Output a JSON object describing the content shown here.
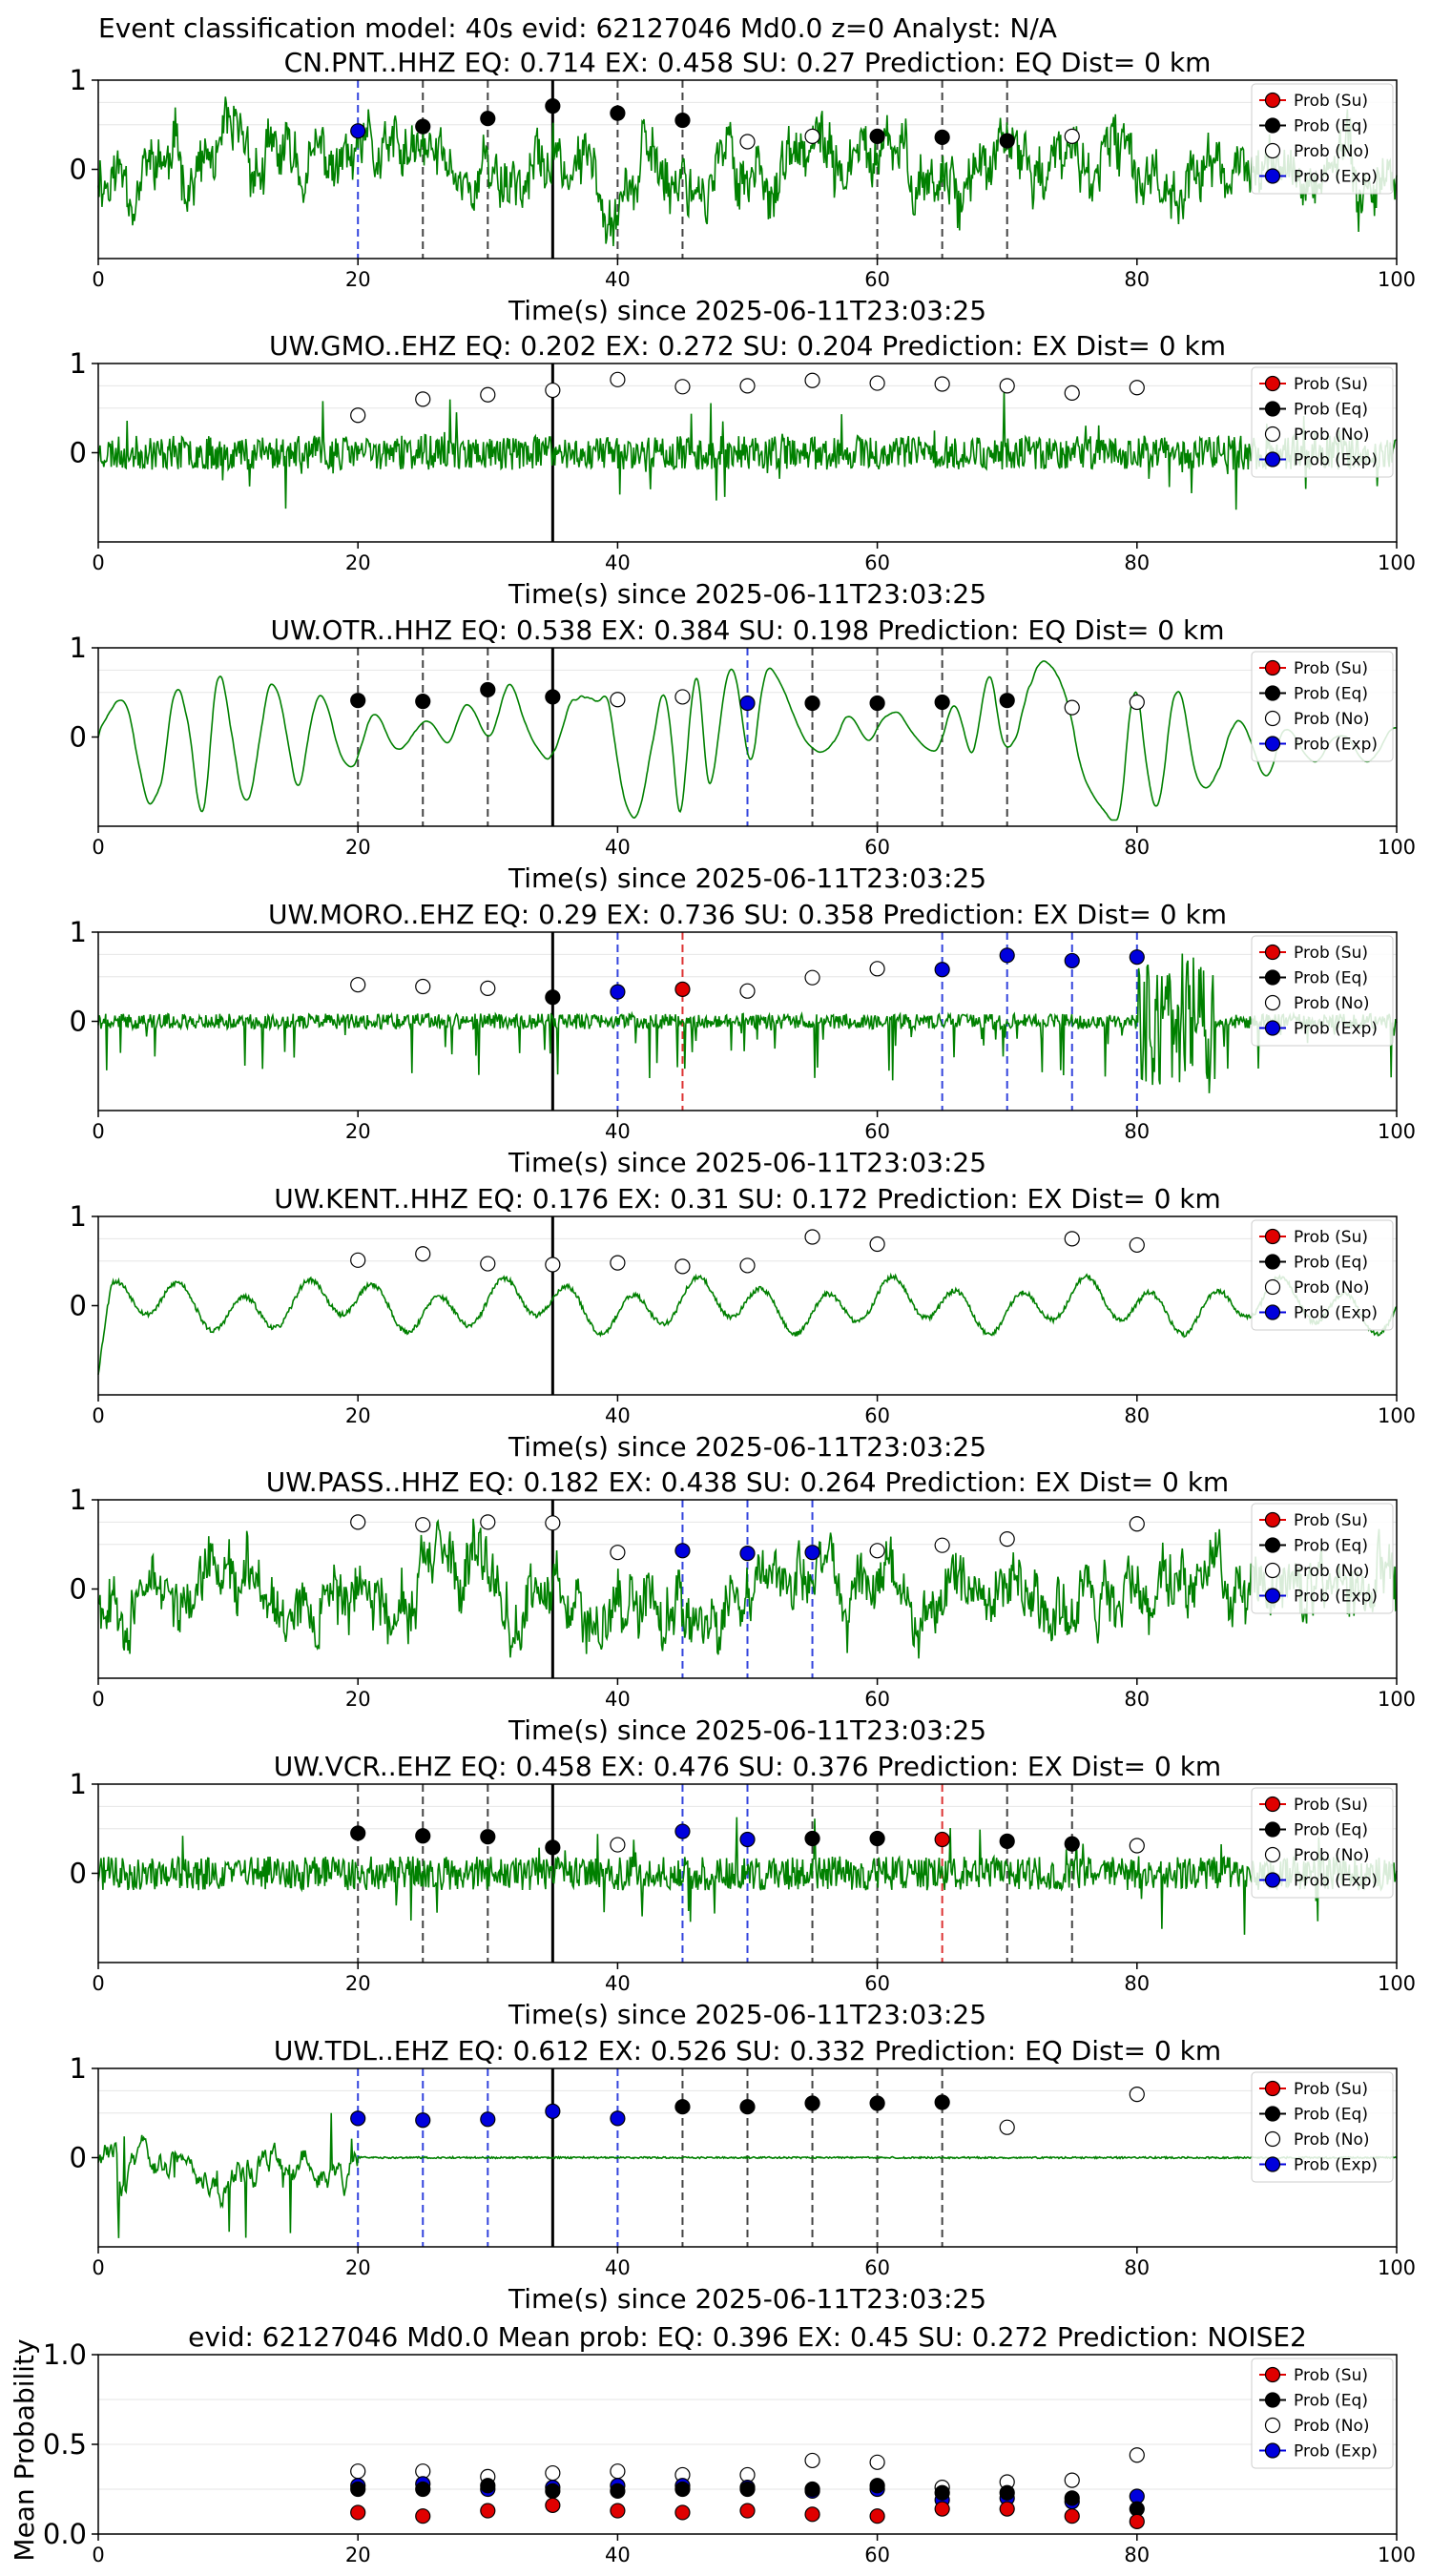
{
  "figure_title": "Event classification model: 40s evid: 62127046 Md0.0 z=0 Analyst: N/A",
  "legend_labels": [
    "Prob (Su)",
    "Prob (Eq)",
    "Prob (No)",
    "Prob (Exp)"
  ],
  "colors": {
    "su": "#e00000",
    "eq": "#000000",
    "no": "#ffffff",
    "exp": "#0000dd",
    "trace": "#008000",
    "eq_line": "#444444",
    "exp_line": "#3344dd",
    "su_line": "#dd3333"
  },
  "chart_data": [
    {
      "type": "scatter",
      "title": "CN.PNT..HHZ   EQ: 0.714  EX: 0.458  SU: 0.27   Prediction: EQ    Dist= 0 km",
      "xlabel": "Time(s) since 2025-06-11T23:03:25",
      "ylabel": "",
      "xlim": [
        0,
        100
      ],
      "ylim": [
        -1,
        1
      ],
      "xticks": [
        "0",
        "20",
        "40",
        "60",
        "80",
        "100"
      ],
      "yticks": [
        "0",
        "1"
      ],
      "event_time": 35,
      "trace_style": "broadband",
      "trace_seed": 11,
      "points": [
        {
          "x": 20,
          "y": 0.43,
          "class": "exp"
        },
        {
          "x": 25,
          "y": 0.48,
          "class": "eq"
        },
        {
          "x": 30,
          "y": 0.57,
          "class": "eq"
        },
        {
          "x": 35,
          "y": 0.71,
          "class": "eq"
        },
        {
          "x": 40,
          "y": 0.63,
          "class": "eq"
        },
        {
          "x": 45,
          "y": 0.55,
          "class": "eq"
        },
        {
          "x": 50,
          "y": 0.31,
          "class": "no"
        },
        {
          "x": 55,
          "y": 0.37,
          "class": "no"
        },
        {
          "x": 60,
          "y": 0.37,
          "class": "eq"
        },
        {
          "x": 65,
          "y": 0.36,
          "class": "eq"
        },
        {
          "x": 70,
          "y": 0.32,
          "class": "eq"
        },
        {
          "x": 75,
          "y": 0.37,
          "class": "no"
        }
      ]
    },
    {
      "type": "scatter",
      "title": "UW.GMO..EHZ   EQ: 0.202  EX: 0.272  SU: 0.204   Prediction: EX    Dist= 0 km",
      "xlabel": "Time(s) since 2025-06-11T23:03:25",
      "ylabel": "",
      "xlim": [
        0,
        100
      ],
      "ylim": [
        -1,
        1
      ],
      "xticks": [
        "0",
        "20",
        "40",
        "60",
        "80",
        "100"
      ],
      "yticks": [
        "0",
        "1"
      ],
      "event_time": 35,
      "trace_style": "noisy",
      "trace_seed": 23,
      "points": [
        {
          "x": 20,
          "y": 0.42,
          "class": "no"
        },
        {
          "x": 25,
          "y": 0.6,
          "class": "no"
        },
        {
          "x": 30,
          "y": 0.65,
          "class": "no"
        },
        {
          "x": 35,
          "y": 0.7,
          "class": "no"
        },
        {
          "x": 40,
          "y": 0.82,
          "class": "no"
        },
        {
          "x": 45,
          "y": 0.74,
          "class": "no"
        },
        {
          "x": 50,
          "y": 0.75,
          "class": "no"
        },
        {
          "x": 55,
          "y": 0.81,
          "class": "no"
        },
        {
          "x": 60,
          "y": 0.78,
          "class": "no"
        },
        {
          "x": 65,
          "y": 0.77,
          "class": "no"
        },
        {
          "x": 70,
          "y": 0.75,
          "class": "no"
        },
        {
          "x": 75,
          "y": 0.67,
          "class": "no"
        },
        {
          "x": 80,
          "y": 0.73,
          "class": "no"
        }
      ]
    },
    {
      "type": "scatter",
      "title": "UW.OTR..HHZ   EQ: 0.538  EX: 0.384  SU: 0.198   Prediction: EQ    Dist= 0 km",
      "xlabel": "Time(s) since 2025-06-11T23:03:25",
      "ylabel": "",
      "xlim": [
        0,
        100
      ],
      "ylim": [
        -1,
        1
      ],
      "xticks": [
        "0",
        "20",
        "40",
        "60",
        "80",
        "100"
      ],
      "yticks": [
        "0",
        "1"
      ],
      "event_time": 35,
      "trace_style": "swell",
      "trace_seed": 37,
      "points": [
        {
          "x": 20,
          "y": 0.41,
          "class": "eq"
        },
        {
          "x": 25,
          "y": 0.4,
          "class": "eq"
        },
        {
          "x": 30,
          "y": 0.53,
          "class": "eq"
        },
        {
          "x": 35,
          "y": 0.45,
          "class": "eq"
        },
        {
          "x": 40,
          "y": 0.42,
          "class": "no"
        },
        {
          "x": 45,
          "y": 0.45,
          "class": "no"
        },
        {
          "x": 50,
          "y": 0.38,
          "class": "exp"
        },
        {
          "x": 55,
          "y": 0.38,
          "class": "eq"
        },
        {
          "x": 60,
          "y": 0.38,
          "class": "eq"
        },
        {
          "x": 65,
          "y": 0.39,
          "class": "eq"
        },
        {
          "x": 70,
          "y": 0.41,
          "class": "eq"
        },
        {
          "x": 75,
          "y": 0.33,
          "class": "no"
        },
        {
          "x": 80,
          "y": 0.39,
          "class": "no"
        }
      ]
    },
    {
      "type": "scatter",
      "title": "UW.MORO..EHZ   EQ: 0.29  EX: 0.736  SU: 0.358   Prediction: EX    Dist= 0 km",
      "xlabel": "Time(s) since 2025-06-11T23:03:25",
      "ylabel": "",
      "xlim": [
        0,
        100
      ],
      "ylim": [
        -1,
        1
      ],
      "xticks": [
        "0",
        "20",
        "40",
        "60",
        "80",
        "100"
      ],
      "yticks": [
        "0",
        "1"
      ],
      "event_time": 35,
      "trace_style": "spiky",
      "trace_seed": 41,
      "points": [
        {
          "x": 20,
          "y": 0.41,
          "class": "no"
        },
        {
          "x": 25,
          "y": 0.39,
          "class": "no"
        },
        {
          "x": 30,
          "y": 0.37,
          "class": "no"
        },
        {
          "x": 35,
          "y": 0.27,
          "class": "eq"
        },
        {
          "x": 40,
          "y": 0.33,
          "class": "exp"
        },
        {
          "x": 45,
          "y": 0.36,
          "class": "su"
        },
        {
          "x": 50,
          "y": 0.34,
          "class": "no"
        },
        {
          "x": 55,
          "y": 0.49,
          "class": "no"
        },
        {
          "x": 60,
          "y": 0.59,
          "class": "no"
        },
        {
          "x": 65,
          "y": 0.58,
          "class": "exp"
        },
        {
          "x": 70,
          "y": 0.74,
          "class": "exp"
        },
        {
          "x": 75,
          "y": 0.68,
          "class": "exp"
        },
        {
          "x": 80,
          "y": 0.72,
          "class": "exp"
        }
      ]
    },
    {
      "type": "scatter",
      "title": "UW.KENT..HHZ   EQ: 0.176  EX: 0.31  SU: 0.172   Prediction: EX    Dist= 0 km",
      "xlabel": "Time(s) since 2025-06-11T23:03:25",
      "ylabel": "",
      "xlim": [
        0,
        100
      ],
      "ylim": [
        -1,
        1
      ],
      "xticks": [
        "0",
        "20",
        "40",
        "60",
        "80",
        "100"
      ],
      "yticks": [
        "0",
        "1"
      ],
      "event_time": 35,
      "trace_style": "wave",
      "trace_seed": 53,
      "points": [
        {
          "x": 20,
          "y": 0.51,
          "class": "no"
        },
        {
          "x": 25,
          "y": 0.58,
          "class": "no"
        },
        {
          "x": 30,
          "y": 0.47,
          "class": "no"
        },
        {
          "x": 35,
          "y": 0.46,
          "class": "no"
        },
        {
          "x": 40,
          "y": 0.48,
          "class": "no"
        },
        {
          "x": 45,
          "y": 0.44,
          "class": "no"
        },
        {
          "x": 50,
          "y": 0.45,
          "class": "no"
        },
        {
          "x": 55,
          "y": 0.77,
          "class": "no"
        },
        {
          "x": 60,
          "y": 0.69,
          "class": "no"
        },
        {
          "x": 75,
          "y": 0.75,
          "class": "no"
        },
        {
          "x": 80,
          "y": 0.68,
          "class": "no"
        }
      ]
    },
    {
      "type": "scatter",
      "title": "UW.PASS..HHZ   EQ: 0.182  EX: 0.438  SU: 0.264   Prediction: EX    Dist= 0 km",
      "xlabel": "Time(s) since 2025-06-11T23:03:25",
      "ylabel": "",
      "xlim": [
        0,
        100
      ],
      "ylim": [
        -1,
        1
      ],
      "xticks": [
        "0",
        "20",
        "40",
        "60",
        "80",
        "100"
      ],
      "yticks": [
        "0",
        "1"
      ],
      "event_time": 35,
      "trace_style": "broadband",
      "trace_seed": 67,
      "points": [
        {
          "x": 20,
          "y": 0.75,
          "class": "no"
        },
        {
          "x": 25,
          "y": 0.72,
          "class": "no"
        },
        {
          "x": 30,
          "y": 0.75,
          "class": "no"
        },
        {
          "x": 35,
          "y": 0.74,
          "class": "no"
        },
        {
          "x": 40,
          "y": 0.41,
          "class": "no"
        },
        {
          "x": 45,
          "y": 0.43,
          "class": "exp"
        },
        {
          "x": 50,
          "y": 0.4,
          "class": "exp"
        },
        {
          "x": 55,
          "y": 0.41,
          "class": "exp"
        },
        {
          "x": 60,
          "y": 0.43,
          "class": "no"
        },
        {
          "x": 65,
          "y": 0.49,
          "class": "no"
        },
        {
          "x": 70,
          "y": 0.56,
          "class": "no"
        },
        {
          "x": 80,
          "y": 0.73,
          "class": "no"
        }
      ]
    },
    {
      "type": "scatter",
      "title": "UW.VCR..EHZ   EQ: 0.458  EX: 0.476  SU: 0.376   Prediction: EX    Dist= 0 km",
      "xlabel": "Time(s) since 2025-06-11T23:03:25",
      "ylabel": "",
      "xlim": [
        0,
        100
      ],
      "ylim": [
        -1,
        1
      ],
      "xticks": [
        "0",
        "20",
        "40",
        "60",
        "80",
        "100"
      ],
      "yticks": [
        "0",
        "1"
      ],
      "event_time": 35,
      "trace_style": "noisy",
      "trace_seed": 71,
      "points": [
        {
          "x": 20,
          "y": 0.45,
          "class": "eq"
        },
        {
          "x": 25,
          "y": 0.42,
          "class": "eq"
        },
        {
          "x": 30,
          "y": 0.41,
          "class": "eq"
        },
        {
          "x": 35,
          "y": 0.29,
          "class": "eq"
        },
        {
          "x": 40,
          "y": 0.32,
          "class": "no"
        },
        {
          "x": 45,
          "y": 0.47,
          "class": "exp"
        },
        {
          "x": 50,
          "y": 0.38,
          "class": "exp"
        },
        {
          "x": 55,
          "y": 0.39,
          "class": "eq"
        },
        {
          "x": 60,
          "y": 0.39,
          "class": "eq"
        },
        {
          "x": 65,
          "y": 0.38,
          "class": "su"
        },
        {
          "x": 70,
          "y": 0.36,
          "class": "eq"
        },
        {
          "x": 75,
          "y": 0.33,
          "class": "eq"
        },
        {
          "x": 80,
          "y": 0.31,
          "class": "no"
        }
      ]
    },
    {
      "type": "scatter",
      "title": "UW.TDL..EHZ   EQ: 0.612  EX: 0.526  SU: 0.332   Prediction: EQ    Dist= 0 km",
      "xlabel": "Time(s) since 2025-06-11T23:03:25",
      "ylabel": "",
      "xlim": [
        0,
        100
      ],
      "ylim": [
        -1,
        1
      ],
      "xticks": [
        "0",
        "20",
        "40",
        "60",
        "80",
        "100"
      ],
      "yticks": [
        "0",
        "1"
      ],
      "event_time": 35,
      "trace_style": "dead",
      "trace_seed": 83,
      "points": [
        {
          "x": 20,
          "y": 0.44,
          "class": "exp"
        },
        {
          "x": 25,
          "y": 0.42,
          "class": "exp"
        },
        {
          "x": 30,
          "y": 0.43,
          "class": "exp"
        },
        {
          "x": 35,
          "y": 0.52,
          "class": "exp"
        },
        {
          "x": 40,
          "y": 0.44,
          "class": "exp"
        },
        {
          "x": 45,
          "y": 0.57,
          "class": "eq"
        },
        {
          "x": 50,
          "y": 0.57,
          "class": "eq"
        },
        {
          "x": 55,
          "y": 0.61,
          "class": "eq"
        },
        {
          "x": 60,
          "y": 0.61,
          "class": "eq"
        },
        {
          "x": 65,
          "y": 0.62,
          "class": "eq"
        },
        {
          "x": 70,
          "y": 0.34,
          "class": "no"
        },
        {
          "x": 80,
          "y": 0.71,
          "class": "no"
        }
      ]
    },
    {
      "type": "scatter",
      "title": "evid: 62127046  Md0.0   Mean prob:   EQ: 0.396  EX: 0.45  SU: 0.272   Prediction: NOISE2",
      "xlabel": "",
      "ylabel": "Mean Probability",
      "xlim": [
        0,
        100
      ],
      "ylim": [
        0,
        1
      ],
      "xticks": [
        "0",
        "20",
        "40",
        "60",
        "80",
        "100"
      ],
      "yticks": [
        "0.0",
        "0.5",
        "1.0"
      ],
      "x": [
        20,
        25,
        30,
        35,
        40,
        45,
        50,
        55,
        60,
        65,
        70,
        75,
        80
      ],
      "series": [
        {
          "key": "no",
          "values": [
            0.35,
            0.35,
            0.32,
            0.34,
            0.35,
            0.33,
            0.33,
            0.41,
            0.4,
            0.26,
            0.29,
            0.3,
            0.44
          ]
        },
        {
          "key": "exp",
          "values": [
            0.27,
            0.28,
            0.25,
            0.26,
            0.27,
            0.27,
            0.26,
            0.24,
            0.25,
            0.19,
            0.2,
            0.18,
            0.21
          ]
        },
        {
          "key": "eq",
          "values": [
            0.25,
            0.25,
            0.27,
            0.24,
            0.24,
            0.25,
            0.25,
            0.25,
            0.27,
            0.23,
            0.23,
            0.2,
            0.14
          ]
        },
        {
          "key": "su",
          "values": [
            0.12,
            0.1,
            0.13,
            0.16,
            0.13,
            0.12,
            0.13,
            0.11,
            0.1,
            0.14,
            0.14,
            0.1,
            0.07
          ]
        }
      ]
    }
  ]
}
